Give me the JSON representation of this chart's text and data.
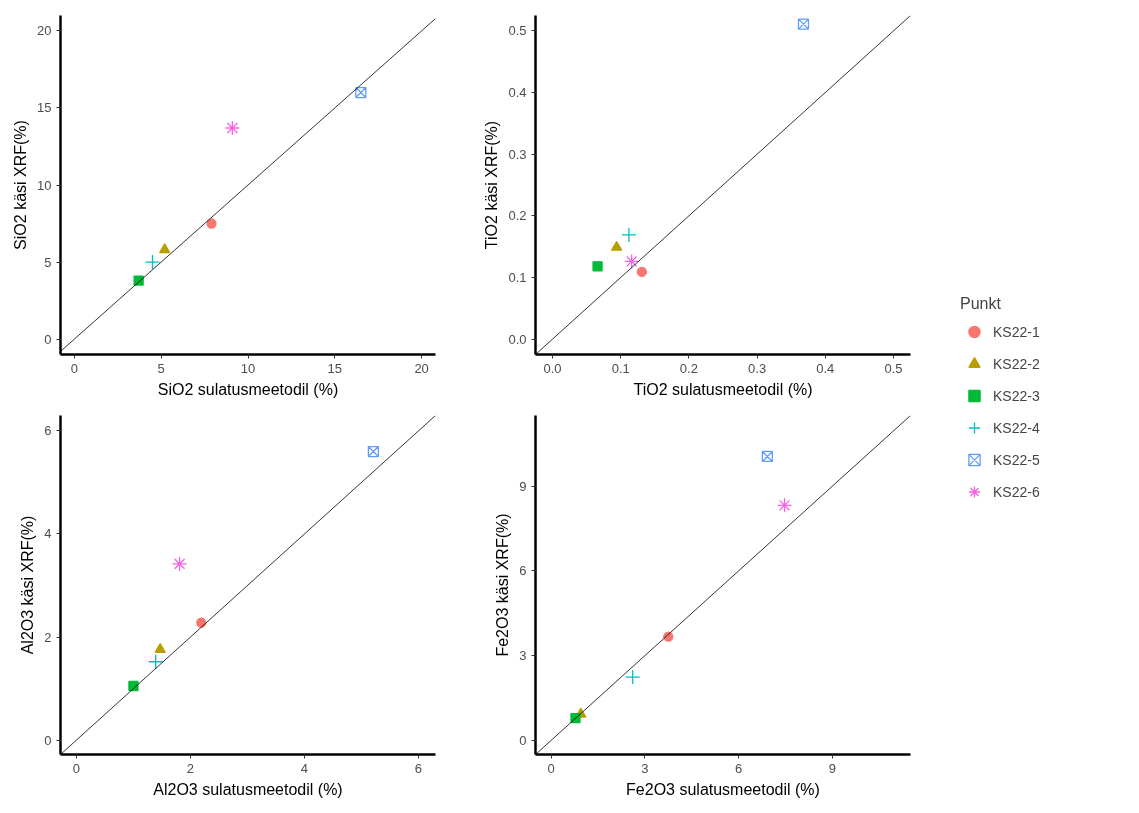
{
  "chart_data": [
    {
      "type": "scatter",
      "xlabel": "SiO2 sulatusmeetodil (%)",
      "ylabel": "SiO2 käsi XRF(%)",
      "xlim": [
        -0.8,
        20.8
      ],
      "ylim": [
        -1,
        21
      ],
      "xticks": [
        0,
        5,
        10,
        15,
        20
      ],
      "yticks": [
        0,
        5,
        10,
        15,
        20
      ],
      "legend": "right",
      "legend_title": "Punkt",
      "series": [
        {
          "name": "KS22-1",
          "color": "#f8766d",
          "marker": "circle",
          "x": [
            7.9
          ],
          "values": [
            7.5
          ]
        },
        {
          "name": "KS22-2",
          "color": "#b79f00",
          "marker": "triangle",
          "x": [
            5.2
          ],
          "values": [
            5.8
          ]
        },
        {
          "name": "KS22-3",
          "color": "#00ba38",
          "marker": "square",
          "x": [
            3.7
          ],
          "values": [
            3.8
          ]
        },
        {
          "name": "KS22-4",
          "color": "#00bfc4",
          "marker": "cross",
          "x": [
            4.5
          ],
          "values": [
            5.0
          ]
        },
        {
          "name": "KS22-5",
          "color": "#619cff",
          "x": [
            16.5
          ],
          "values": [
            16.0
          ]
        },
        {
          "name": "KS22-6",
          "color": "#f564e3",
          "x": [
            9.1
          ],
          "values": [
            13.7
          ]
        },
        {
          "type": "line",
          "color": "#000000",
          "x": [
            -0.8,
            20.8
          ],
          "values": [
            -0.8,
            20.8
          ]
        }
      ]
    },
    {
      "type": "scatter",
      "xlabel": "TiO2 sulatusmeetodil (%)",
      "ylabel": "TiO2 käsi XRF(%)",
      "xlim": [
        -0.025,
        0.525
      ],
      "ylim": [
        -0.025,
        0.525
      ],
      "xticks": [
        {
          "value": 0,
          "label": "0.0"
        },
        0.1,
        0.2,
        0.3,
        0.4,
        0.5
      ],
      "yticks": [
        {
          "value": 0,
          "label": "0.0"
        },
        0.1,
        0.2,
        0.3,
        0.4,
        0.5
      ],
      "series": [
        {
          "color": "#f8766d",
          "marker": "circle",
          "x": [
            0.131
          ],
          "values": [
            0.109
          ]
        },
        {
          "color": "#b79f00",
          "marker": "triangle",
          "x": [
            0.094
          ],
          "values": [
            0.149
          ]
        },
        {
          "color": "#00ba38",
          "marker": "square",
          "x": [
            0.066
          ],
          "values": [
            0.118
          ]
        },
        {
          "color": "#00bfc4",
          "marker": "cross",
          "x": [
            0.112
          ],
          "values": [
            0.169
          ]
        },
        {
          "color": "#619cff",
          "x": [
            0.368
          ],
          "values": [
            0.511
          ]
        },
        {
          "color": "#f564e3",
          "x": [
            0.116
          ],
          "values": [
            0.126
          ]
        },
        {
          "type": "line",
          "color": "#000000",
          "x": [
            -0.025,
            0.525
          ],
          "values": [
            -0.025,
            0.525
          ]
        }
      ]
    },
    {
      "type": "scatter",
      "xlabel": "Al2O3 sulatusmeetodil (%)",
      "ylabel": "Al2O3 käsi XRF(%)",
      "xlim": [
        -0.28,
        6.3
      ],
      "ylim": [
        -0.28,
        6.3
      ],
      "xticks": [
        0,
        2,
        4,
        6
      ],
      "yticks": [
        0,
        2,
        4,
        6
      ],
      "series": [
        {
          "color": "#f8766d",
          "marker": "circle",
          "x": [
            2.19
          ],
          "values": [
            2.28
          ]
        },
        {
          "color": "#b79f00",
          "marker": "triangle",
          "x": [
            1.47
          ],
          "values": [
            1.76
          ]
        },
        {
          "color": "#00ba38",
          "marker": "square",
          "x": [
            1.0
          ],
          "values": [
            1.05
          ]
        },
        {
          "color": "#00bfc4",
          "marker": "cross",
          "x": [
            1.39
          ],
          "values": [
            1.52
          ]
        },
        {
          "color": "#619cff",
          "x": [
            5.21
          ],
          "values": [
            5.6
          ]
        },
        {
          "color": "#f564e3",
          "x": [
            1.81
          ],
          "values": [
            3.42
          ]
        },
        {
          "type": "line",
          "color": "#000000",
          "x": [
            -0.28,
            6.3
          ],
          "values": [
            -0.28,
            6.3
          ]
        }
      ]
    },
    {
      "type": "scatter",
      "xlabel": "Fe2O3 sulatusmeetodil (%)",
      "ylabel": "Fe2O3 käsi XRF(%)",
      "xlim": [
        -0.5,
        11.5
      ],
      "ylim": [
        -0.5,
        11.5
      ],
      "xticks": [
        0,
        3,
        6,
        9
      ],
      "yticks": [
        0,
        3,
        6,
        9
      ],
      "series": [
        {
          "color": "#f8766d",
          "marker": "circle",
          "x": [
            3.75
          ],
          "values": [
            3.67
          ]
        },
        {
          "color": "#b79f00",
          "marker": "triangle",
          "x": [
            0.95
          ],
          "values": [
            0.93
          ]
        },
        {
          "color": "#00ba38",
          "marker": "square",
          "x": [
            0.78
          ],
          "values": [
            0.79
          ]
        },
        {
          "color": "#00bfc4",
          "marker": "cross",
          "x": [
            2.61
          ],
          "values": [
            2.24
          ]
        },
        {
          "color": "#619cff",
          "x": [
            6.92
          ],
          "values": [
            10.05
          ]
        },
        {
          "color": "#f564e3",
          "x": [
            7.47
          ],
          "values": [
            8.32
          ]
        },
        {
          "type": "line",
          "color": "#000000",
          "x": [
            -0.5,
            11.5
          ],
          "values": [
            -0.5,
            11.5
          ]
        }
      ]
    }
  ]
}
